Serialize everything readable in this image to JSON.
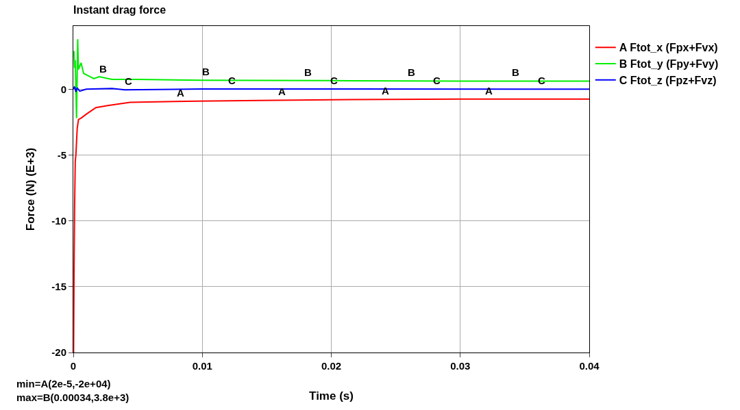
{
  "chart_data": {
    "type": "line",
    "title": "Instant drag force",
    "xlabel": "Time (s)",
    "ylabel": "Force (N) (E+3)",
    "xlim": [
      0,
      0.04
    ],
    "xticks": [
      0,
      0.01,
      0.02,
      0.03,
      0.04
    ],
    "ylim": [
      -20,
      4.8
    ],
    "yticks": [
      -20,
      -15,
      -10,
      -5,
      0
    ],
    "grid": true,
    "legend": "top right",
    "marker": "none",
    "line_style": "solid",
    "series": [
      {
        "name": "A Ftot_x (Fpx+Fvx)",
        "color": "#ff0000",
        "x": [
          2e-05,
          5e-05,
          0.0001,
          0.00015,
          0.0002,
          0.0003,
          0.0004,
          0.0006,
          0.001,
          0.00175,
          0.00266,
          0.0044,
          0.0097,
          0.0145,
          0.02,
          0.03,
          0.04
        ],
        "values": [
          -20,
          -15,
          -9,
          -5.5,
          -5,
          -3,
          -2.3,
          -2.2,
          -1.9,
          -1.4,
          -1.25,
          -1.0,
          -0.9,
          -0.85,
          -0.8,
          -0.75,
          -0.75
        ]
      },
      {
        "name": "B Ftot_y (Fpy+Fvy)",
        "color": "#00ee00",
        "x": [
          0,
          5e-05,
          0.0001,
          0.00015,
          0.00025,
          0.00034,
          0.0004,
          0.0006,
          0.0008,
          0.0012,
          0.0016,
          0.002,
          0.003,
          0.005,
          0.01,
          0.02,
          0.03,
          0.04
        ],
        "values": [
          2.5,
          2.9,
          1.6,
          2.2,
          -2.2,
          3.8,
          1.5,
          2.0,
          1.2,
          1.0,
          0.8,
          0.95,
          0.75,
          0.75,
          0.68,
          0.65,
          0.62,
          0.62
        ]
      },
      {
        "name": "C Ftot_z (Fpz+Fvz)",
        "color": "#0000ff",
        "x": [
          0,
          0.0001,
          0.0002,
          0.0003,
          0.0005,
          0.001,
          0.003,
          0.004,
          0.01,
          0.04
        ],
        "values": [
          0,
          0.2,
          -0.2,
          0.1,
          -0.15,
          0,
          0.05,
          -0.05,
          0.02,
          0
        ]
      }
    ],
    "annotations": [
      {
        "text": "A",
        "x": 0.0083,
        "y": -0.93
      },
      {
        "text": "A",
        "x": 0.0162,
        "y": -0.84
      },
      {
        "text": "A",
        "x": 0.0242,
        "y": -0.78
      },
      {
        "text": "A",
        "x": 0.0322,
        "y": -0.75
      },
      {
        "text": "B",
        "x": 0.0023,
        "y": 0.89
      },
      {
        "text": "B",
        "x": 0.0103,
        "y": 0.68
      },
      {
        "text": "B",
        "x": 0.0182,
        "y": 0.655
      },
      {
        "text": "B",
        "x": 0.0262,
        "y": 0.63
      },
      {
        "text": "B",
        "x": 0.0343,
        "y": 0.62
      },
      {
        "text": "C",
        "x": 0.0043,
        "y": -0.05
      },
      {
        "text": "C",
        "x": 0.0123,
        "y": 0.02
      },
      {
        "text": "C",
        "x": 0.0202,
        "y": 0.02
      },
      {
        "text": "C",
        "x": 0.0282,
        "y": 0.01
      },
      {
        "text": "C",
        "x": 0.0363,
        "y": 0.01
      },
      "min=A(2e-5,-2e+04)\nmax=B(0.00034,3.8e+3)"
    ]
  }
}
